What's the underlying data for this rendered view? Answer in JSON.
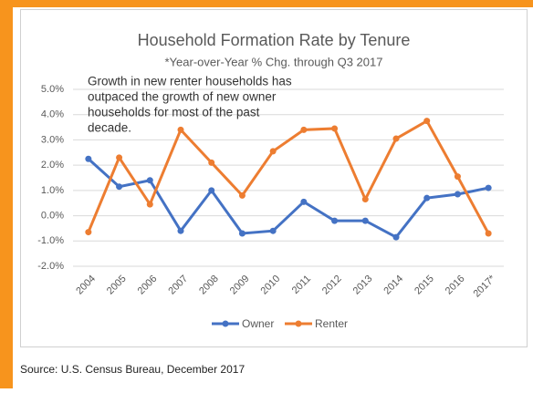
{
  "chart_data": {
    "type": "line",
    "title": "Household Formation Rate by Tenure",
    "subtitle": "*Year-over-Year % Chg. through Q3 2017",
    "annotation": [
      "Growth in new renter households has",
      "outpaced the growth of new owner",
      "households for most of the past",
      "decade."
    ],
    "categories": [
      "2004",
      "2005",
      "2006",
      "2007",
      "2008",
      "2009",
      "2010",
      "2011",
      "2012",
      "2013",
      "2014",
      "2015",
      "2016",
      "2017*"
    ],
    "series": [
      {
        "name": "Owner",
        "color": "#4472c4",
        "values": [
          2.25,
          1.15,
          1.4,
          -0.6,
          1.0,
          -0.7,
          -0.6,
          0.55,
          -0.2,
          -0.2,
          -0.85,
          0.7,
          0.85,
          1.1
        ]
      },
      {
        "name": "Renter",
        "color": "#ed7d31",
        "values": [
          -0.65,
          2.3,
          0.45,
          3.4,
          2.1,
          0.8,
          2.55,
          3.4,
          3.45,
          0.65,
          3.05,
          3.75,
          1.55,
          -0.7
        ]
      }
    ],
    "ylim": [
      -2,
      5
    ],
    "yticks": [
      {
        "value": -2,
        "label": "-2.0%"
      },
      {
        "value": -1,
        "label": "-1.0%"
      },
      {
        "value": 0,
        "label": "0.0%"
      },
      {
        "value": 1,
        "label": "1.0%"
      },
      {
        "value": 2,
        "label": "2.0%"
      },
      {
        "value": 3,
        "label": "3.0%"
      },
      {
        "value": 4,
        "label": "4.0%"
      },
      {
        "value": 5,
        "label": "5.0%"
      }
    ],
    "grid": true,
    "legend": "bottom",
    "source": "Source: U.S. Census Bureau, December 2017"
  }
}
